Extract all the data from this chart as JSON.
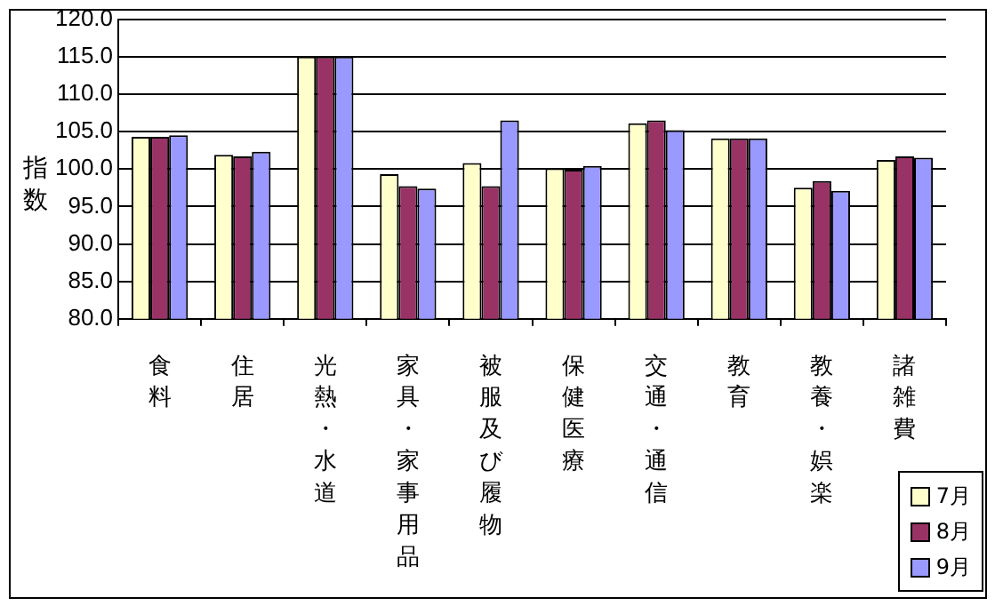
{
  "chart_data": {
    "type": "bar",
    "ylabel": "指数",
    "categories": [
      "食料",
      "住居",
      "光熱・水道",
      "家具・家事用品",
      "被服及び履物",
      "保健医療",
      "交通・通信",
      "教育",
      "教養・娯楽",
      "諸雑費"
    ],
    "series": [
      {
        "name": "7月",
        "color": "#ffffcc",
        "values": [
          104.3,
          101.9,
          115.0,
          99.3,
          100.8,
          100.1,
          106.1,
          104.1,
          97.5,
          101.2
        ]
      },
      {
        "name": "8月",
        "color": "#993366",
        "values": [
          104.3,
          101.7,
          115.0,
          97.7,
          97.7,
          99.9,
          106.5,
          104.1,
          98.4,
          101.7
        ]
      },
      {
        "name": "9月",
        "color": "#9999ff",
        "values": [
          104.5,
          102.3,
          115.0,
          97.4,
          106.5,
          100.4,
          105.2,
          104.1,
          97.1,
          101.5
        ]
      }
    ],
    "ylim": [
      80,
      120
    ],
    "yticks": [
      {
        "value": 80,
        "label": "80.0"
      },
      {
        "value": 85,
        "label": "85.0"
      },
      {
        "value": 90,
        "label": "90.0"
      },
      {
        "value": 95,
        "label": "95.0"
      },
      {
        "value": 100,
        "label": "100.0"
      },
      {
        "value": 105,
        "label": "105.0"
      },
      {
        "value": 110,
        "label": "110.0"
      },
      {
        "value": 115,
        "label": "115.0"
      },
      {
        "value": 120,
        "label": "120.0"
      }
    ],
    "grid": "y",
    "legend": "bottom right"
  }
}
